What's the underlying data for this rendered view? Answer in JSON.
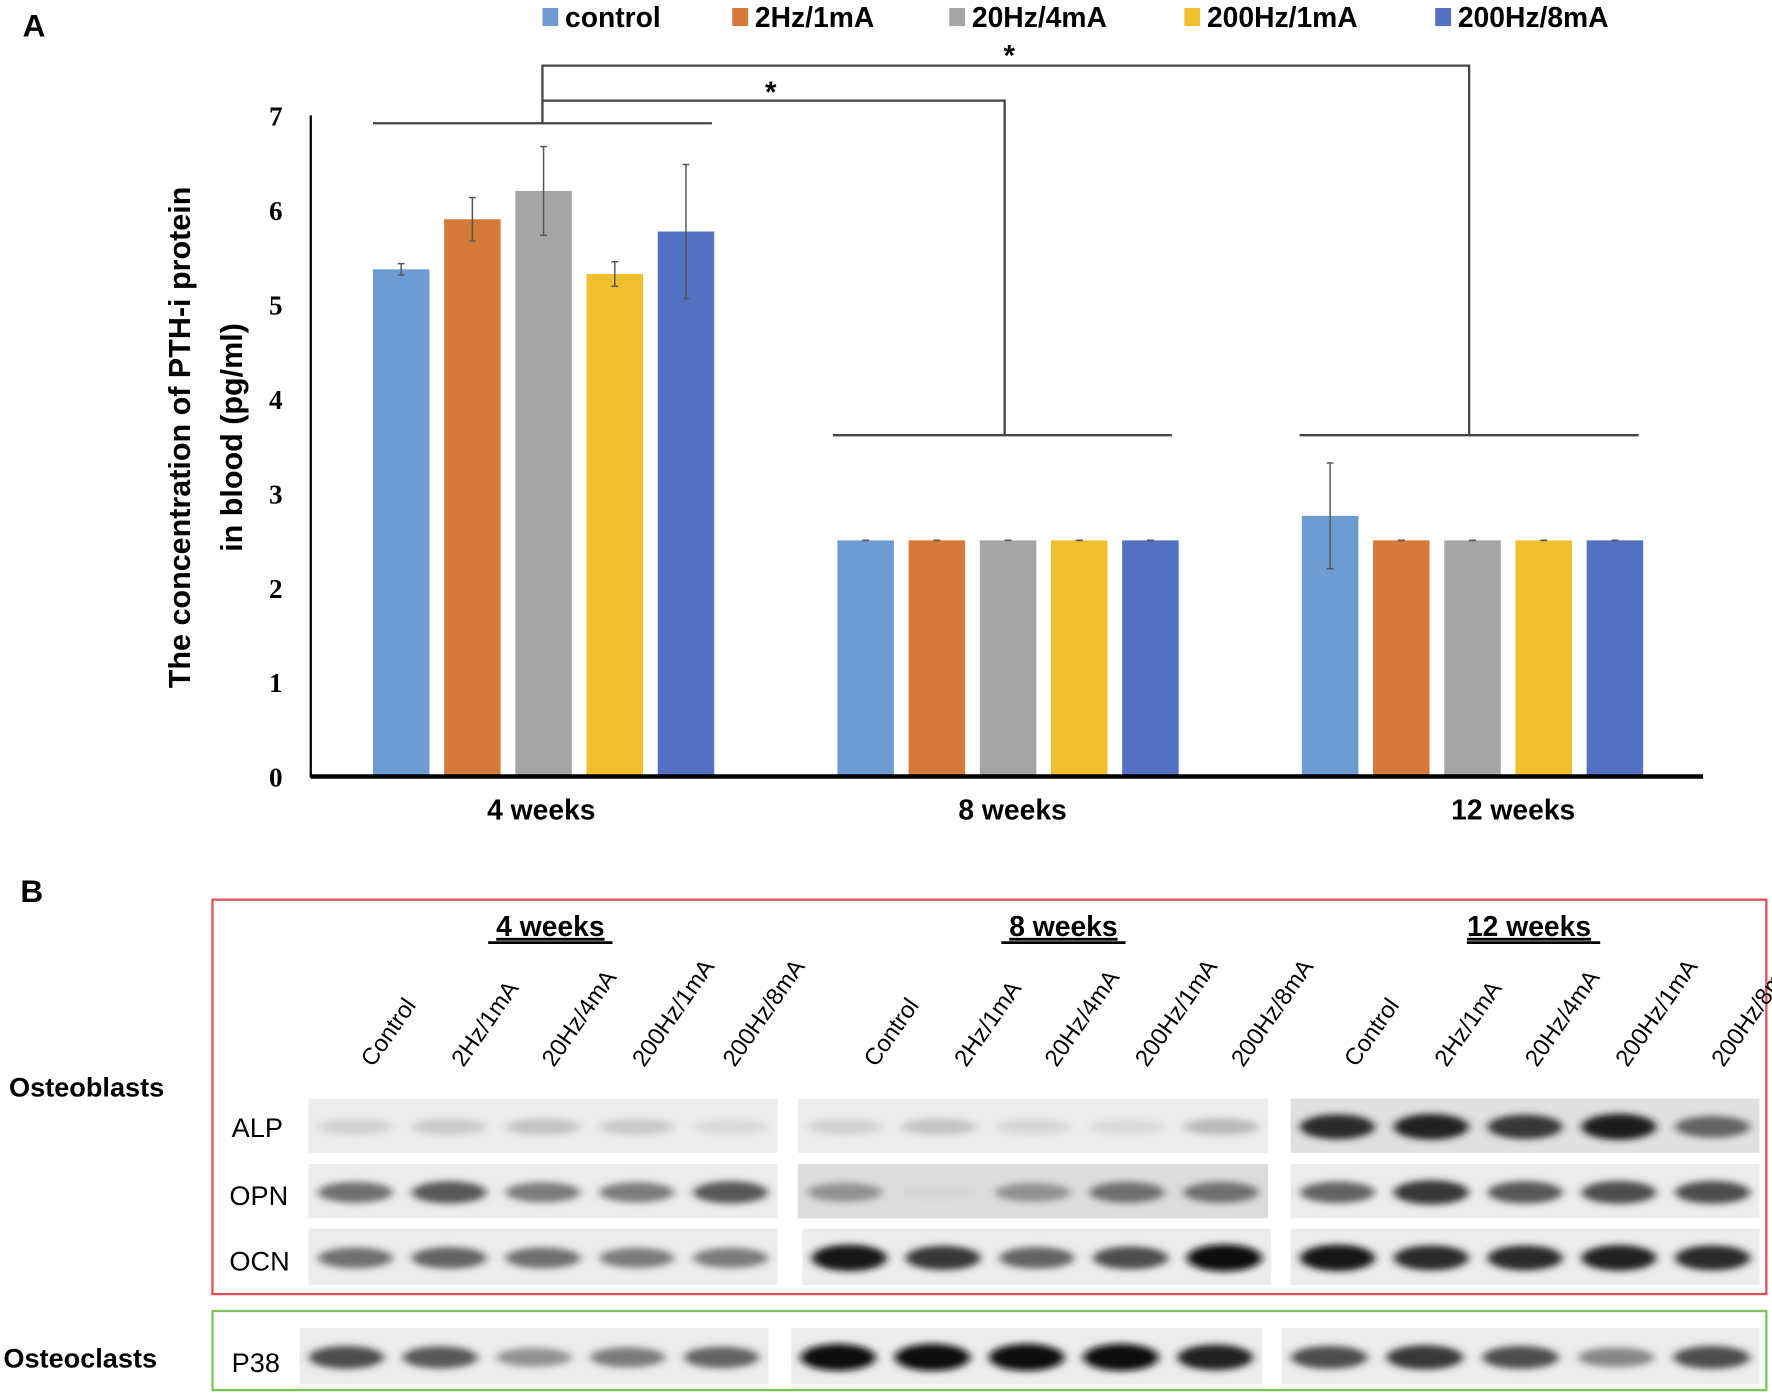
{
  "panel_labels": {
    "a": "A",
    "b": "B"
  },
  "chart_data": {
    "type": "bar",
    "title": "",
    "xlabel": "",
    "ylabel": [
      "The concentration of PTH-i protein",
      "in blood (pg/ml)"
    ],
    "ylim": [
      0,
      7
    ],
    "yticks": [
      "0",
      "1",
      "2",
      "3",
      "4",
      "5",
      "6",
      "7"
    ],
    "grid": false,
    "legend_position": "top",
    "categories": [
      "4 weeks",
      "8 weeks",
      "12 weeks"
    ],
    "series": [
      {
        "name": "control",
        "color": "#6f9bd3",
        "values": [
          5.37,
          2.5,
          2.76
        ],
        "errors": [
          0.06,
          0,
          0.56
        ]
      },
      {
        "name": "2Hz/1mA",
        "color": "#d67a3a",
        "values": [
          5.9,
          2.5,
          2.5
        ],
        "errors": [
          0.23,
          0,
          0
        ]
      },
      {
        "name": "20Hz/4mA",
        "color": "#a5a5a5",
        "values": [
          6.2,
          2.5,
          2.5
        ],
        "errors": [
          0.47,
          0,
          0
        ]
      },
      {
        "name": "200Hz/1mA",
        "color": "#f0bf2d",
        "values": [
          5.32,
          2.5,
          2.5
        ],
        "errors": [
          0.13,
          0,
          0
        ]
      },
      {
        "name": "200Hz/8mA",
        "color": "#5470c0",
        "values": [
          5.77,
          2.5,
          2.5
        ],
        "errors": [
          0.71,
          0,
          0
        ]
      }
    ],
    "annotations": [
      {
        "text": "*",
        "from": "4 weeks",
        "to": "8 weeks"
      },
      {
        "text": "*",
        "from": "4 weeks",
        "to": "12 weeks"
      }
    ]
  },
  "blot": {
    "groups": [
      "4 weeks",
      "8 weeks",
      "12 weeks"
    ],
    "lanes": [
      "Control",
      "2Hz/1mA",
      "20Hz/4mA",
      "200Hz/1mA",
      "200Hz/8mA"
    ],
    "osteoblasts_label": "Osteoblasts",
    "osteoclasts_label": "Osteoclasts",
    "osteoblasts_box_color": "#e05050",
    "osteoclasts_box_color": "#7cc45a",
    "proteins": [
      {
        "name": "ALP",
        "intensity": [
          [
            0.12,
            0.15,
            0.18,
            0.15,
            0.08
          ],
          [
            0.12,
            0.18,
            0.1,
            0.08,
            0.22
          ],
          [
            0.85,
            0.9,
            0.8,
            0.92,
            0.6
          ]
        ]
      },
      {
        "name": "OPN",
        "intensity": [
          [
            0.55,
            0.65,
            0.5,
            0.5,
            0.65
          ],
          [
            0.4,
            0.1,
            0.4,
            0.55,
            0.55
          ],
          [
            0.6,
            0.8,
            0.65,
            0.7,
            0.7
          ]
        ]
      },
      {
        "name": "OCN",
        "intensity": [
          [
            0.55,
            0.6,
            0.55,
            0.5,
            0.5
          ],
          [
            0.95,
            0.8,
            0.6,
            0.7,
            1.0
          ],
          [
            0.95,
            0.85,
            0.85,
            0.9,
            0.85
          ]
        ]
      },
      {
        "name": "P38",
        "intensity": [
          [
            0.7,
            0.65,
            0.4,
            0.5,
            0.6
          ],
          [
            0.98,
            1.0,
            1.0,
            1.0,
            0.9
          ],
          [
            0.7,
            0.8,
            0.7,
            0.45,
            0.7
          ]
        ]
      }
    ]
  }
}
